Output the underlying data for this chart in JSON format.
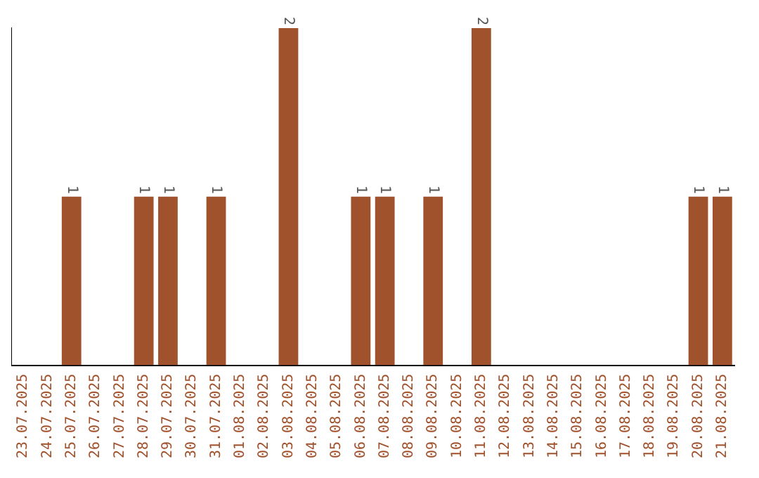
{
  "chart_data": {
    "type": "bar",
    "categories": [
      "23.07.2025",
      "24.07.2025",
      "25.07.2025",
      "26.07.2025",
      "27.07.2025",
      "28.07.2025",
      "29.07.2025",
      "30.07.2025",
      "31.07.2025",
      "01.08.2025",
      "02.08.2025",
      "03.08.2025",
      "04.08.2025",
      "05.08.2025",
      "06.08.2025",
      "07.08.2025",
      "08.08.2025",
      "09.08.2025",
      "10.08.2025",
      "11.08.2025",
      "12.08.2025",
      "13.08.2025",
      "14.08.2025",
      "15.08.2025",
      "16.08.2025",
      "17.08.2025",
      "18.08.2025",
      "19.08.2025",
      "20.08.2025",
      "21.08.2025"
    ],
    "values": [
      0,
      0,
      1,
      0,
      0,
      1,
      1,
      0,
      1,
      0,
      0,
      2,
      0,
      0,
      1,
      1,
      0,
      1,
      0,
      2,
      0,
      0,
      0,
      0,
      0,
      0,
      0,
      0,
      1,
      1
    ],
    "value_labels": [
      null,
      null,
      "1",
      null,
      null,
      "1",
      "1",
      null,
      "1",
      null,
      null,
      "2",
      null,
      null,
      "1",
      "1",
      null,
      "1",
      null,
      "2",
      null,
      null,
      null,
      null,
      null,
      null,
      null,
      null,
      "1",
      "1"
    ],
    "color": "#a0522d",
    "ylim": [
      0,
      2
    ],
    "tick_labels": "x",
    "grid": false,
    "legend": false
  }
}
